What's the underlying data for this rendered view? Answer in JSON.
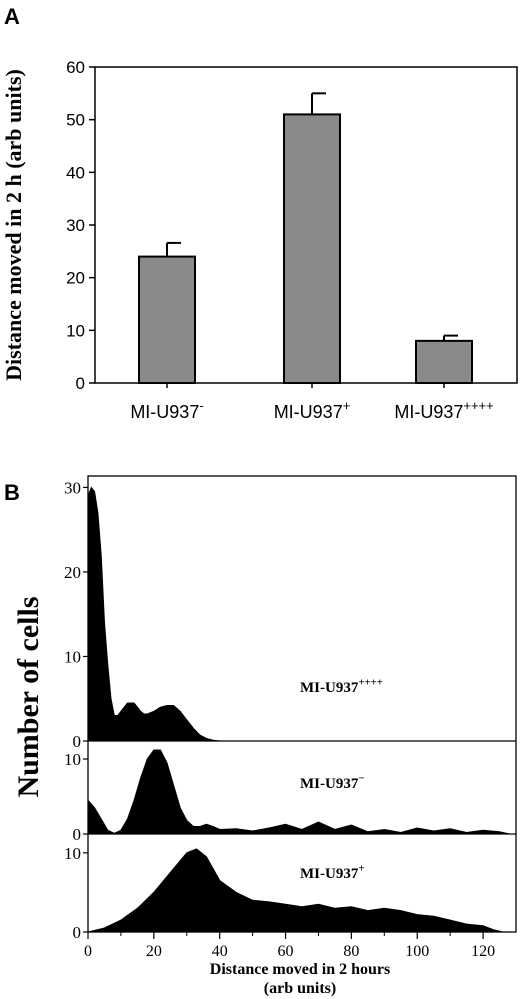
{
  "chart_data": [
    {
      "panel": "A",
      "type": "bar",
      "ylabel": "Distance moved in 2 h (arb units)",
      "ylim": [
        0,
        60
      ],
      "yticks": [
        "0",
        "10",
        "20",
        "30",
        "40",
        "50",
        "60"
      ],
      "categories": [
        {
          "base": "MI-U937",
          "sup": "-"
        },
        {
          "base": "MI-U937",
          "sup": "+"
        },
        {
          "base": "MI-U937",
          "sup": "++++"
        }
      ],
      "values": [
        24,
        51,
        8
      ],
      "errors": [
        2.6,
        4,
        1
      ],
      "bar_color": "#8a8a8a"
    },
    {
      "panel": "B",
      "type": "area",
      "xlabel": "Distance moved in 2 hours",
      "xlabel2": "(arb units)",
      "ylabel": "Number of cells",
      "xlim": [
        0,
        130
      ],
      "xticks": [
        "0",
        "20",
        "40",
        "60",
        "80",
        "100",
        "120"
      ],
      "subpanels": [
        {
          "name": {
            "base": "MI-U937",
            "sup": "++++"
          },
          "ylim": [
            0,
            31
          ],
          "yticks": [
            "0",
            "10",
            "20",
            "30"
          ],
          "x": [
            0,
            1,
            2,
            3,
            4,
            5,
            6,
            7,
            8,
            9,
            10,
            11,
            12,
            13,
            14,
            15,
            16,
            17,
            18,
            20,
            22,
            24,
            26,
            28,
            30,
            32,
            34,
            36,
            38,
            40,
            130
          ],
          "y": [
            29,
            30,
            29.5,
            27,
            22,
            14,
            9,
            5,
            3,
            3,
            3.5,
            4,
            4.5,
            4.5,
            4.5,
            4,
            3.5,
            3.2,
            3.2,
            3.5,
            4,
            4.2,
            4.2,
            3.5,
            2.5,
            1.5,
            0.7,
            0.3,
            0.1,
            0,
            0
          ]
        },
        {
          "name": {
            "base": "MI-U937",
            "sup": "−"
          },
          "ylim": [
            0,
            12
          ],
          "yticks": [
            "0",
            "10"
          ],
          "x": [
            0,
            2,
            4,
            6,
            8,
            10,
            12,
            14,
            16,
            18,
            20,
            22,
            24,
            26,
            28,
            30,
            32,
            34,
            36,
            38,
            40,
            45,
            50,
            55,
            60,
            65,
            70,
            75,
            80,
            85,
            90,
            95,
            100,
            105,
            110,
            115,
            120,
            125,
            128
          ],
          "y": [
            4.5,
            3.5,
            2,
            0.5,
            0.1,
            0.5,
            2,
            4.5,
            7.5,
            10,
            11.2,
            11.2,
            9.5,
            6.5,
            3.5,
            1.8,
            1,
            1,
            1.3,
            1,
            0.6,
            0.7,
            0.4,
            0.8,
            1.3,
            0.6,
            1.6,
            0.6,
            1.2,
            0.3,
            0.6,
            0.2,
            0.8,
            0.4,
            0.7,
            0.2,
            0.5,
            0.3,
            0
          ]
        },
        {
          "name": {
            "base": "MI-U937",
            "sup": "+"
          },
          "ylim": [
            0,
            12
          ],
          "yticks": [
            "0",
            "10"
          ],
          "x": [
            0,
            5,
            10,
            15,
            20,
            25,
            30,
            33,
            36,
            40,
            45,
            50,
            55,
            60,
            65,
            70,
            75,
            80,
            85,
            90,
            95,
            100,
            105,
            110,
            115,
            120,
            123,
            126
          ],
          "y": [
            0,
            0.5,
            1.5,
            3,
            5,
            7.5,
            10,
            10.5,
            9.5,
            6.5,
            5,
            4,
            3.8,
            3.5,
            3.2,
            3.5,
            3,
            3.2,
            2.7,
            3,
            2.7,
            2.2,
            2,
            1.5,
            1,
            0.8,
            0.3,
            0
          ]
        }
      ]
    }
  ]
}
